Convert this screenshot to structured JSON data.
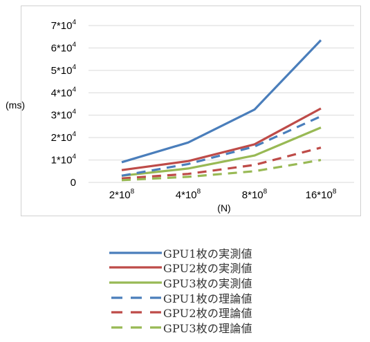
{
  "chart_data": {
    "type": "line",
    "title": "",
    "xlabel": "(N)",
    "ylabel": "(ms)",
    "categories": [
      "2*10^8",
      "4*10^8",
      "8*10^8",
      "16*10^8"
    ],
    "x_ticks": [
      {
        "base": "2*10",
        "exp": "8"
      },
      {
        "base": "4*10",
        "exp": "8"
      },
      {
        "base": "8*10",
        "exp": "8"
      },
      {
        "base": "16*10",
        "exp": "8"
      }
    ],
    "y_ticks": [
      {
        "value": 0,
        "base": "0",
        "exp": ""
      },
      {
        "value": 10000,
        "base": "1*10",
        "exp": "4"
      },
      {
        "value": 20000,
        "base": "2*10",
        "exp": "4"
      },
      {
        "value": 30000,
        "base": "3*10",
        "exp": "4"
      },
      {
        "value": 40000,
        "base": "4*10",
        "exp": "4"
      },
      {
        "value": 50000,
        "base": "5*10",
        "exp": "4"
      },
      {
        "value": 60000,
        "base": "6*10",
        "exp": "4"
      },
      {
        "value": 70000,
        "base": "7*10",
        "exp": "4"
      }
    ],
    "ylim": [
      0,
      70000
    ],
    "grid": true,
    "legend_position": "bottom",
    "series": [
      {
        "name": "GPU1枚の実測値",
        "color": "#4a7ebb",
        "dash": "solid",
        "values": [
          9000,
          17800,
          32500,
          63500
        ]
      },
      {
        "name": "GPU2枚の実測値",
        "color": "#be4b48",
        "dash": "solid",
        "values": [
          5500,
          9500,
          17000,
          33000
        ]
      },
      {
        "name": "GPU3枚の実測値",
        "color": "#98b954",
        "dash": "solid",
        "values": [
          3000,
          6200,
          12000,
          24500
        ]
      },
      {
        "name": "GPU1枚の理論値",
        "color": "#4a7ebb",
        "dash": "dashed",
        "values": [
          3000,
          8200,
          16000,
          29500
        ]
      },
      {
        "name": "GPU2枚の理論値",
        "color": "#be4b48",
        "dash": "dashed",
        "values": [
          1800,
          3800,
          7800,
          15500
        ]
      },
      {
        "name": "GPU3枚の理論値",
        "color": "#98b954",
        "dash": "dashed",
        "values": [
          1000,
          2500,
          5000,
          10000
        ]
      }
    ]
  }
}
